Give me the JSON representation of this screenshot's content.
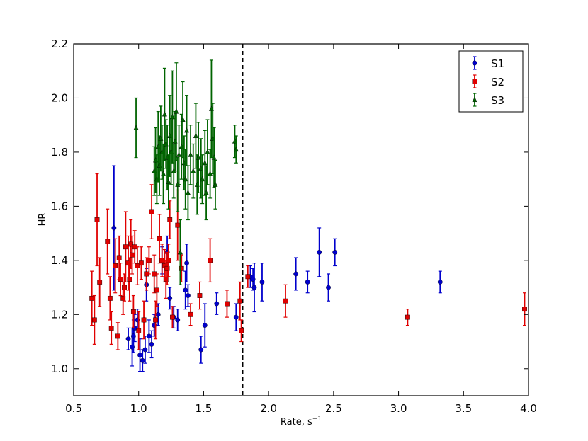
{
  "chart_data": {
    "type": "scatter",
    "title": "",
    "xlabel_text": "Rate, s",
    "xlabel_exp": "−1",
    "ylabel": "HR",
    "xlim": [
      0.5,
      4.0
    ],
    "ylim": [
      0.9,
      2.2
    ],
    "xticks": [
      "0.5",
      "1.0",
      "1.5",
      "2.0",
      "2.5",
      "3.0",
      "3.5",
      "4.0"
    ],
    "yticks": [
      "1.0",
      "1.2",
      "1.4",
      "1.6",
      "1.8",
      "2.0",
      "2.2"
    ],
    "grid": false,
    "legend_position": "top-right",
    "vline_x": 1.8,
    "series": [
      {
        "name": "S1",
        "color": "#0000cc",
        "marker": "circle",
        "points": [
          [
            0.81,
            1.52,
            0.23
          ],
          [
            0.92,
            1.11,
            0.04
          ],
          [
            0.95,
            1.08,
            0.07
          ],
          [
            0.96,
            1.12,
            0.06
          ],
          [
            0.97,
            1.15,
            0.05
          ],
          [
            0.99,
            1.18,
            0.04
          ],
          [
            1.01,
            1.05,
            0.06
          ],
          [
            1.03,
            1.03,
            0.04
          ],
          [
            1.05,
            1.07,
            0.05
          ],
          [
            1.06,
            1.31,
            0.06
          ],
          [
            1.08,
            1.12,
            0.06
          ],
          [
            1.1,
            1.09,
            0.05
          ],
          [
            1.12,
            1.16,
            0.04
          ],
          [
            1.15,
            1.2,
            0.04
          ],
          [
            1.18,
            1.4,
            0.05
          ],
          [
            1.22,
            1.43,
            0.06
          ],
          [
            1.24,
            1.26,
            0.04
          ],
          [
            1.27,
            1.19,
            0.04
          ],
          [
            1.3,
            1.18,
            0.04
          ],
          [
            1.36,
            1.29,
            0.07
          ],
          [
            1.37,
            1.39,
            0.07
          ],
          [
            1.38,
            1.27,
            0.04
          ],
          [
            1.48,
            1.07,
            0.05
          ],
          [
            1.51,
            1.16,
            0.08
          ],
          [
            1.6,
            1.24,
            0.04
          ],
          [
            1.75,
            1.19,
            0.05
          ],
          [
            1.86,
            1.34,
            0.04
          ],
          [
            1.88,
            1.33,
            0.04
          ],
          [
            1.89,
            1.3,
            0.09
          ],
          [
            1.95,
            1.32,
            0.07
          ],
          [
            2.21,
            1.35,
            0.06
          ],
          [
            2.3,
            1.32,
            0.04
          ],
          [
            2.39,
            1.43,
            0.09
          ],
          [
            2.46,
            1.3,
            0.05
          ],
          [
            2.51,
            1.43,
            0.05
          ],
          [
            3.32,
            1.32,
            0.04
          ]
        ]
      },
      {
        "name": "S2",
        "color": "#e00000",
        "marker": "square",
        "points": [
          [
            0.64,
            1.26,
            0.1
          ],
          [
            0.66,
            1.18,
            0.09
          ],
          [
            0.68,
            1.55,
            0.17
          ],
          [
            0.7,
            1.32,
            0.09
          ],
          [
            0.76,
            1.47,
            0.12
          ],
          [
            0.78,
            1.26,
            0.08
          ],
          [
            0.79,
            1.15,
            0.06
          ],
          [
            0.82,
            1.38,
            0.1
          ],
          [
            0.84,
            1.12,
            0.05
          ],
          [
            0.85,
            1.41,
            0.08
          ],
          [
            0.86,
            1.33,
            0.06
          ],
          [
            0.88,
            1.26,
            0.06
          ],
          [
            0.89,
            1.3,
            0.05
          ],
          [
            0.9,
            1.45,
            0.13
          ],
          [
            0.92,
            1.39,
            0.1
          ],
          [
            0.93,
            1.33,
            0.08
          ],
          [
            0.94,
            1.46,
            0.09
          ],
          [
            0.95,
            1.42,
            0.07
          ],
          [
            0.96,
            1.21,
            0.06
          ],
          [
            0.97,
            1.45,
            0.06
          ],
          [
            0.99,
            1.38,
            0.07
          ],
          [
            1.0,
            1.14,
            0.07
          ],
          [
            1.02,
            1.39,
            0.06
          ],
          [
            1.04,
            1.18,
            0.07
          ],
          [
            1.06,
            1.35,
            0.06
          ],
          [
            1.08,
            1.4,
            0.05
          ],
          [
            1.1,
            1.58,
            0.1
          ],
          [
            1.12,
            1.35,
            0.07
          ],
          [
            1.13,
            1.18,
            0.07
          ],
          [
            1.14,
            1.29,
            0.06
          ],
          [
            1.16,
            1.48,
            0.09
          ],
          [
            1.18,
            1.4,
            0.06
          ],
          [
            1.2,
            1.38,
            0.06
          ],
          [
            1.21,
            1.33,
            0.07
          ],
          [
            1.22,
            1.37,
            0.06
          ],
          [
            1.23,
            1.4,
            0.06
          ],
          [
            1.24,
            1.55,
            0.07
          ],
          [
            1.26,
            1.19,
            0.04
          ],
          [
            1.3,
            1.53,
            0.13
          ],
          [
            1.33,
            1.37,
            0.05
          ],
          [
            1.4,
            1.2,
            0.04
          ],
          [
            1.47,
            1.27,
            0.05
          ],
          [
            1.55,
            1.4,
            0.08
          ],
          [
            1.68,
            1.24,
            0.05
          ],
          [
            1.78,
            1.25,
            0.07
          ],
          [
            1.79,
            1.14,
            0.04
          ],
          [
            1.84,
            1.34,
            0.04
          ],
          [
            2.13,
            1.25,
            0.06
          ],
          [
            3.07,
            1.19,
            0.03
          ],
          [
            3.97,
            1.22,
            0.06
          ]
        ]
      },
      {
        "name": "S3",
        "color": "#006400",
        "marker": "triangle",
        "points": [
          [
            0.98,
            1.89,
            0.11
          ],
          [
            1.12,
            1.73,
            0.09
          ],
          [
            1.13,
            1.77,
            0.12
          ],
          [
            1.14,
            1.7,
            0.09
          ],
          [
            1.15,
            1.82,
            0.13
          ],
          [
            1.16,
            1.75,
            0.11
          ],
          [
            1.17,
            1.85,
            0.12
          ],
          [
            1.18,
            1.8,
            0.1
          ],
          [
            1.19,
            1.72,
            0.11
          ],
          [
            1.2,
            1.94,
            0.17
          ],
          [
            1.21,
            1.83,
            0.09
          ],
          [
            1.22,
            1.78,
            0.12
          ],
          [
            1.23,
            1.69,
            0.1
          ],
          [
            1.24,
            1.86,
            0.15
          ],
          [
            1.25,
            1.8,
            0.12
          ],
          [
            1.26,
            1.93,
            0.17
          ],
          [
            1.27,
            1.73,
            0.1
          ],
          [
            1.28,
            1.84,
            0.11
          ],
          [
            1.29,
            1.95,
            0.18
          ],
          [
            1.3,
            1.68,
            0.1
          ],
          [
            1.31,
            1.79,
            0.11
          ],
          [
            1.32,
            1.43,
            0.12
          ],
          [
            1.33,
            1.82,
            0.12
          ],
          [
            1.34,
            1.92,
            0.14
          ],
          [
            1.35,
            1.76,
            0.1
          ],
          [
            1.36,
            1.7,
            0.11
          ],
          [
            1.37,
            1.88,
            0.13
          ],
          [
            1.38,
            1.65,
            0.1
          ],
          [
            1.4,
            1.79,
            0.11
          ],
          [
            1.42,
            1.73,
            0.1
          ],
          [
            1.44,
            1.86,
            0.12
          ],
          [
            1.45,
            1.68,
            0.11
          ],
          [
            1.46,
            1.78,
            0.13
          ],
          [
            1.48,
            1.74,
            0.11
          ],
          [
            1.49,
            1.7,
            0.09
          ],
          [
            1.51,
            1.76,
            0.12
          ],
          [
            1.52,
            1.65,
            0.1
          ],
          [
            1.53,
            1.8,
            0.12
          ],
          [
            1.55,
            1.72,
            0.09
          ],
          [
            1.56,
            1.96,
            0.18
          ],
          [
            1.57,
            1.85,
            0.13
          ],
          [
            1.58,
            1.78,
            0.11
          ],
          [
            1.59,
            1.68,
            0.09
          ],
          [
            1.74,
            1.84,
            0.06
          ],
          [
            1.75,
            1.81,
            0.05
          ]
        ]
      }
    ]
  }
}
